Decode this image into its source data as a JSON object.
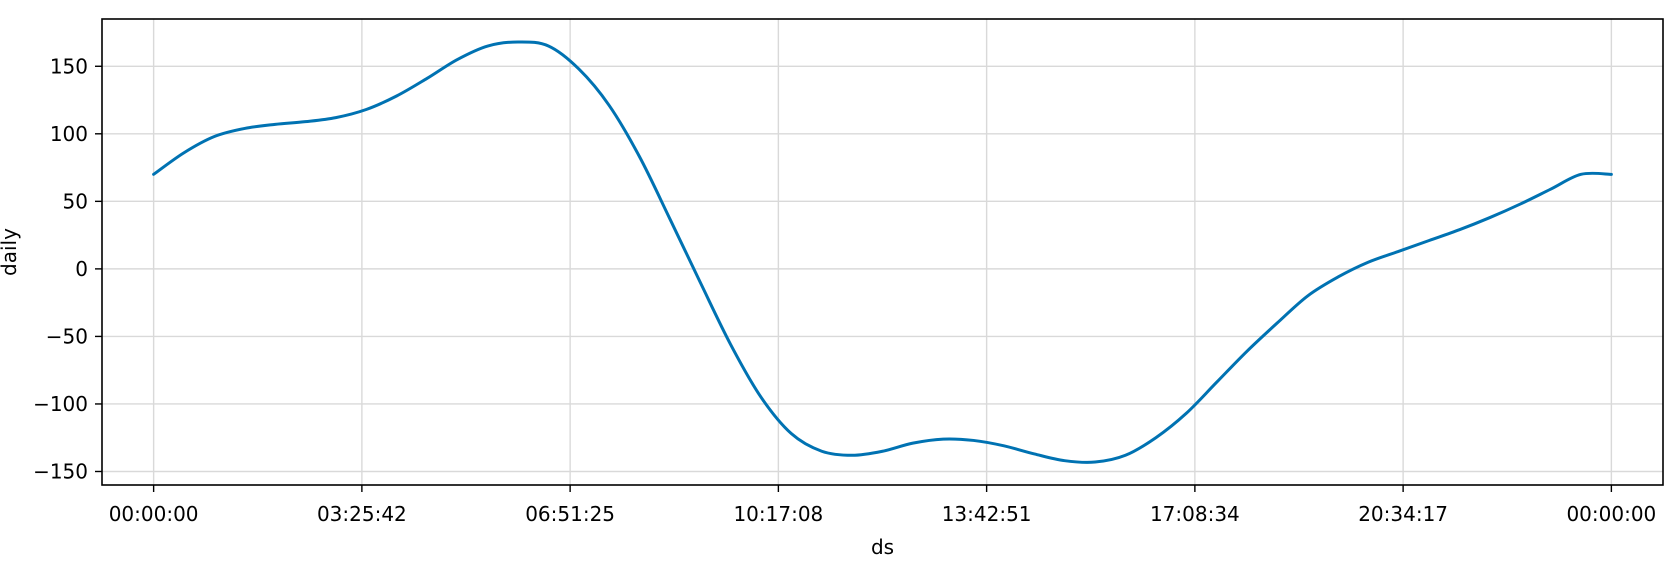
{
  "chart_data": {
    "type": "line",
    "title": "",
    "xlabel": "ds",
    "ylabel": "daily",
    "x_ticks": [
      "00:00:00",
      "03:25:42",
      "06:51:25",
      "10:17:08",
      "13:42:51",
      "17:08:34",
      "20:34:17",
      "00:00:00"
    ],
    "y_ticks": [
      150,
      100,
      50,
      0,
      -50,
      -100,
      -150
    ],
    "y_tick_labels": [
      "150",
      "100",
      "50",
      "0",
      "−50",
      "−100",
      "−150"
    ],
    "xlim_hours": [
      -0.85,
      24.85
    ],
    "ylim": [
      -160,
      185
    ],
    "grid": true,
    "series": [
      {
        "color": "#0072b2",
        "x_hours": [
          0,
          0.5,
          1,
          1.5,
          2,
          2.5,
          3,
          3.5,
          4,
          4.5,
          5,
          5.5,
          6,
          6.5,
          7,
          7.5,
          8,
          8.5,
          9,
          9.5,
          10,
          10.5,
          11,
          11.5,
          12,
          12.5,
          13,
          13.5,
          14,
          14.5,
          15,
          15.5,
          16,
          16.5,
          17,
          17.5,
          18,
          18.5,
          19,
          19.5,
          20,
          20.5,
          21,
          21.5,
          22,
          22.5,
          23,
          23.5,
          24
        ],
        "values": [
          70,
          86,
          98,
          104,
          107,
          109,
          112,
          118,
          128,
          141,
          155,
          165,
          168,
          165,
          148,
          121,
          83,
          37,
          -10,
          -56,
          -95,
          -122,
          -135,
          -138,
          -135,
          -129,
          -126,
          -127,
          -131,
          -137,
          -142,
          -143,
          -138,
          -125,
          -107,
          -84,
          -61,
          -40,
          -20,
          -6,
          5,
          13,
          21,
          29,
          38,
          48,
          59,
          70,
          70
        ]
      }
    ]
  }
}
